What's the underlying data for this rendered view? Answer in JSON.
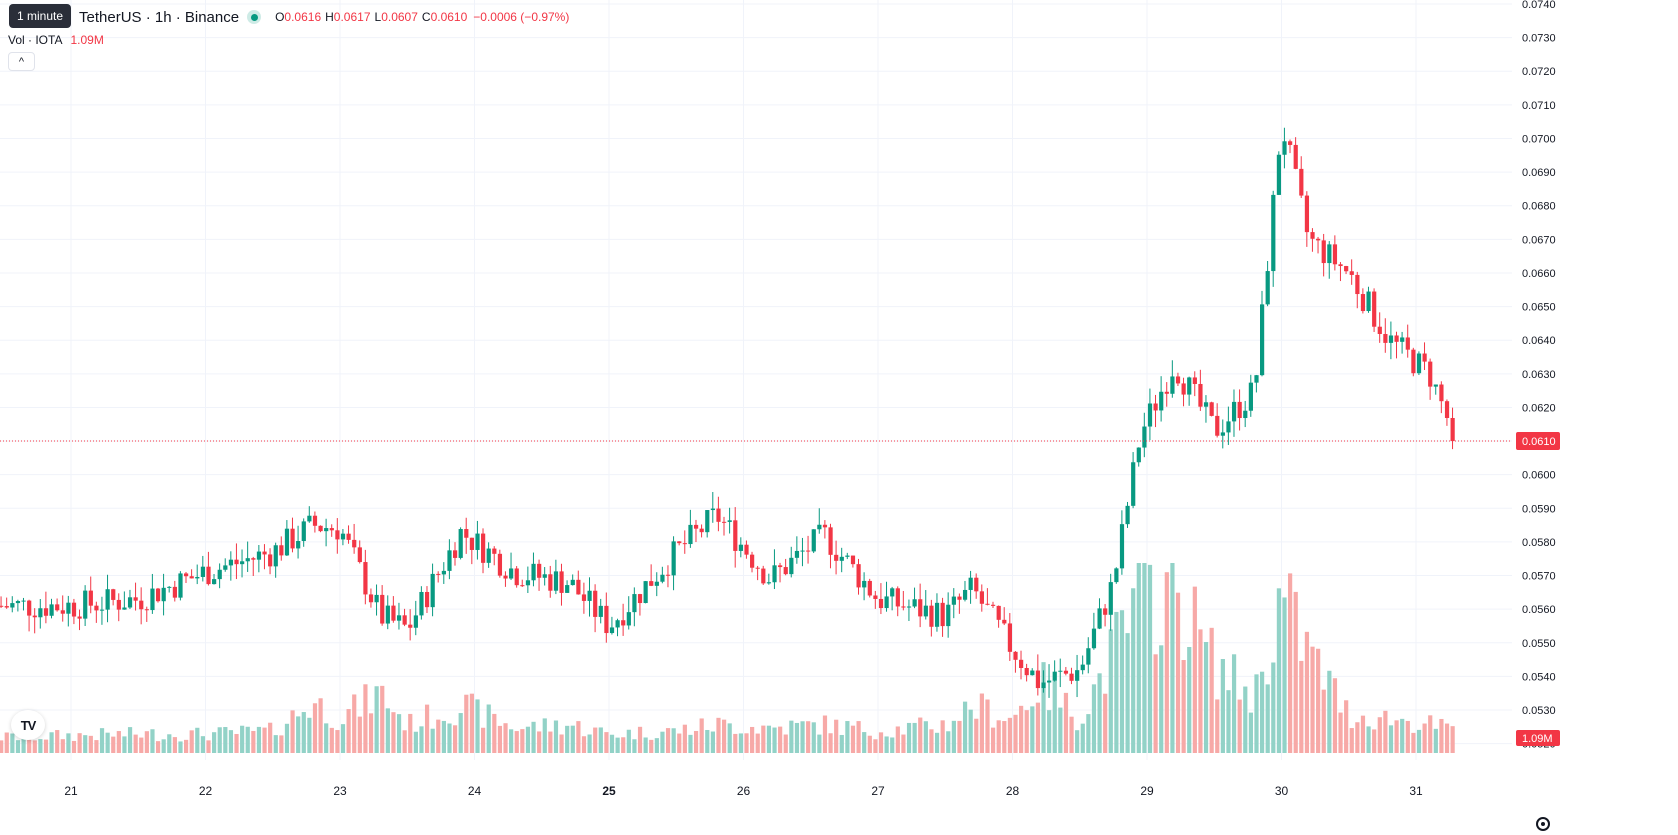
{
  "tooltip": {
    "text": "1 minute"
  },
  "legend": {
    "symbol": "TetherUS · 1h · Binance",
    "open_label": "O",
    "open": "0.0616",
    "high_label": "H",
    "high": "0.0617",
    "low_label": "L",
    "low": "0.0607",
    "close_label": "C",
    "close": "0.0610",
    "change": "−0.0006 (−0.97%)"
  },
  "volume_legend": {
    "name": "Vol · IOTA",
    "value": "1.09M"
  },
  "collapse_button": {
    "glyph": "^"
  },
  "logo": {
    "text": "TV"
  },
  "colors": {
    "up": "#089981",
    "down": "#f23645",
    "up_vol": "#92d2c7",
    "down_vol": "#f7a9a7",
    "grid": "#f0f3fa",
    "text": "#131722"
  },
  "chart_data": {
    "type": "candlestick",
    "y_axis": {
      "range": [
        0.0519,
        0.074
      ],
      "ticks": [
        "0.0740",
        "0.0730",
        "0.0720",
        "0.0710",
        "0.0700",
        "0.0690",
        "0.0680",
        "0.0670",
        "0.0660",
        "0.0650",
        "0.0640",
        "0.0630",
        "0.0620",
        "0.0610",
        "0.0600",
        "0.0590",
        "0.0580",
        "0.0570",
        "0.0560",
        "0.0550",
        "0.0540",
        "0.0530",
        "0.0520"
      ]
    },
    "x_axis": {
      "labels": [
        {
          "text": "21",
          "day": 21,
          "bold": false
        },
        {
          "text": "22",
          "day": 22,
          "bold": false
        },
        {
          "text": "23",
          "day": 23,
          "bold": false
        },
        {
          "text": "24",
          "day": 24,
          "bold": false
        },
        {
          "text": "25",
          "day": 25,
          "bold": true
        },
        {
          "text": "26",
          "day": 26,
          "bold": false
        },
        {
          "text": "27",
          "day": 27,
          "bold": false
        },
        {
          "text": "28",
          "day": 28,
          "bold": false
        },
        {
          "text": "29",
          "day": 29,
          "bold": false
        },
        {
          "text": "30",
          "day": 30,
          "bold": false
        },
        {
          "text": "31",
          "day": 31,
          "bold": false
        }
      ]
    },
    "last_price": "0.0610",
    "last_volume": "1.09M",
    "series": [
      {
        "day": 20.5,
        "price": 0.0561,
        "volume": 0.25
      },
      {
        "day": 21.0,
        "price": 0.0561,
        "volume": 0.28
      },
      {
        "day": 21.5,
        "price": 0.0563,
        "volume": 0.3
      },
      {
        "day": 22.0,
        "price": 0.0571,
        "volume": 0.3
      },
      {
        "day": 22.5,
        "price": 0.0577,
        "volume": 0.35
      },
      {
        "day": 22.8,
        "price": 0.0585,
        "volume": 0.8
      },
      {
        "day": 23.0,
        "price": 0.0584,
        "volume": 0.55
      },
      {
        "day": 23.3,
        "price": 0.0558,
        "volume": 0.95
      },
      {
        "day": 23.5,
        "price": 0.0554,
        "volume": 0.45
      },
      {
        "day": 23.9,
        "price": 0.0583,
        "volume": 0.75
      },
      {
        "day": 24.3,
        "price": 0.0571,
        "volume": 0.4
      },
      {
        "day": 24.7,
        "price": 0.0568,
        "volume": 0.45
      },
      {
        "day": 25.0,
        "price": 0.0555,
        "volume": 0.3
      },
      {
        "day": 25.5,
        "price": 0.0577,
        "volume": 0.35
      },
      {
        "day": 25.8,
        "price": 0.0588,
        "volume": 0.45
      },
      {
        "day": 26.2,
        "price": 0.0569,
        "volume": 0.4
      },
      {
        "day": 26.6,
        "price": 0.0582,
        "volume": 0.45
      },
      {
        "day": 27.0,
        "price": 0.0563,
        "volume": 0.35
      },
      {
        "day": 27.5,
        "price": 0.0558,
        "volume": 0.45
      },
      {
        "day": 27.7,
        "price": 0.0566,
        "volume": 0.75
      },
      {
        "day": 28.0,
        "price": 0.0548,
        "volume": 0.55
      },
      {
        "day": 28.2,
        "price": 0.0538,
        "volume": 1.1
      },
      {
        "day": 28.5,
        "price": 0.0542,
        "volume": 0.55
      },
      {
        "day": 28.75,
        "price": 0.0568,
        "volume": 1.6
      },
      {
        "day": 28.95,
        "price": 0.0612,
        "volume": 2.4
      },
      {
        "day": 29.2,
        "price": 0.0633,
        "volume": 2.65
      },
      {
        "day": 29.5,
        "price": 0.0613,
        "volume": 1.4
      },
      {
        "day": 29.8,
        "price": 0.0625,
        "volume": 0.9
      },
      {
        "day": 30.0,
        "price": 0.0705,
        "volume": 2.45
      },
      {
        "day": 30.2,
        "price": 0.067,
        "volume": 1.6
      },
      {
        "day": 30.5,
        "price": 0.066,
        "volume": 0.6
      },
      {
        "day": 30.8,
        "price": 0.064,
        "volume": 0.55
      },
      {
        "day": 31.1,
        "price": 0.063,
        "volume": 0.45
      },
      {
        "day": 31.3,
        "price": 0.061,
        "volume": 0.35
      }
    ]
  }
}
